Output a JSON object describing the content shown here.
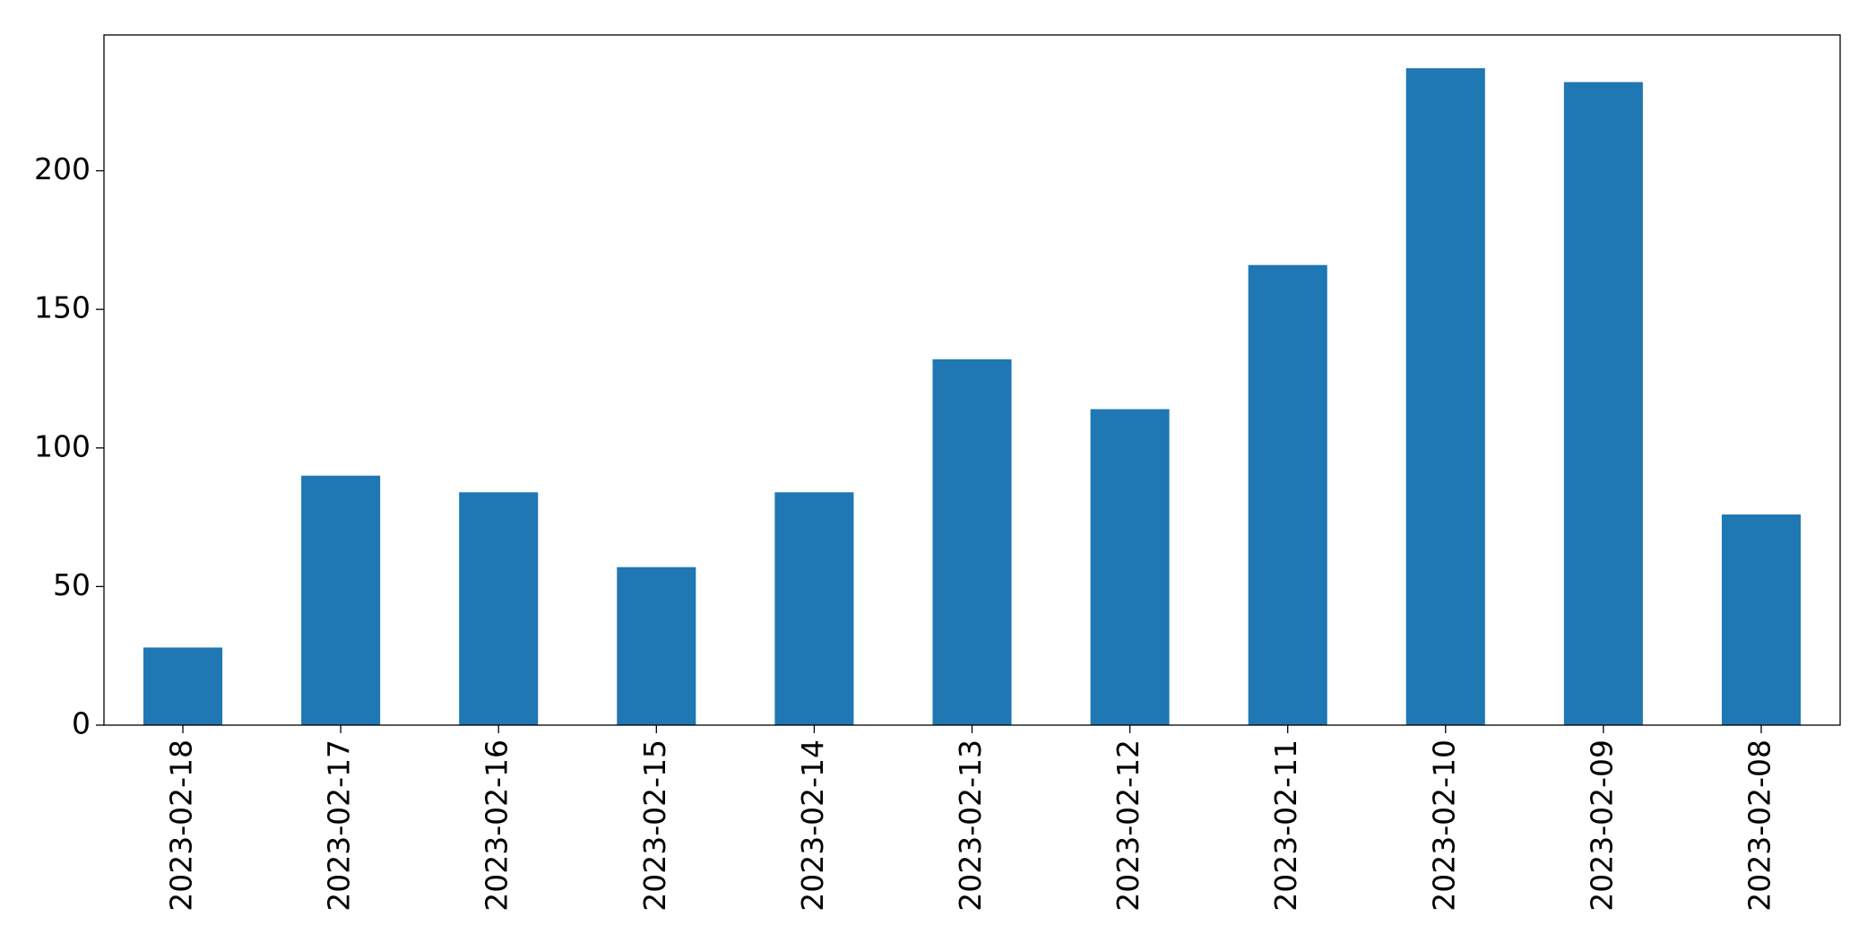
{
  "chart_data": {
    "type": "bar",
    "categories": [
      "2023-02-18",
      "2023-02-17",
      "2023-02-16",
      "2023-02-15",
      "2023-02-14",
      "2023-02-13",
      "2023-02-12",
      "2023-02-11",
      "2023-02-10",
      "2023-02-09",
      "2023-02-08"
    ],
    "values": [
      28,
      90,
      84,
      57,
      84,
      132,
      114,
      166,
      237,
      232,
      76
    ],
    "color": "#1f77b4",
    "ylim": [
      0,
      249
    ],
    "yticks": [
      0,
      50,
      100,
      150,
      200
    ],
    "grid": false
  }
}
